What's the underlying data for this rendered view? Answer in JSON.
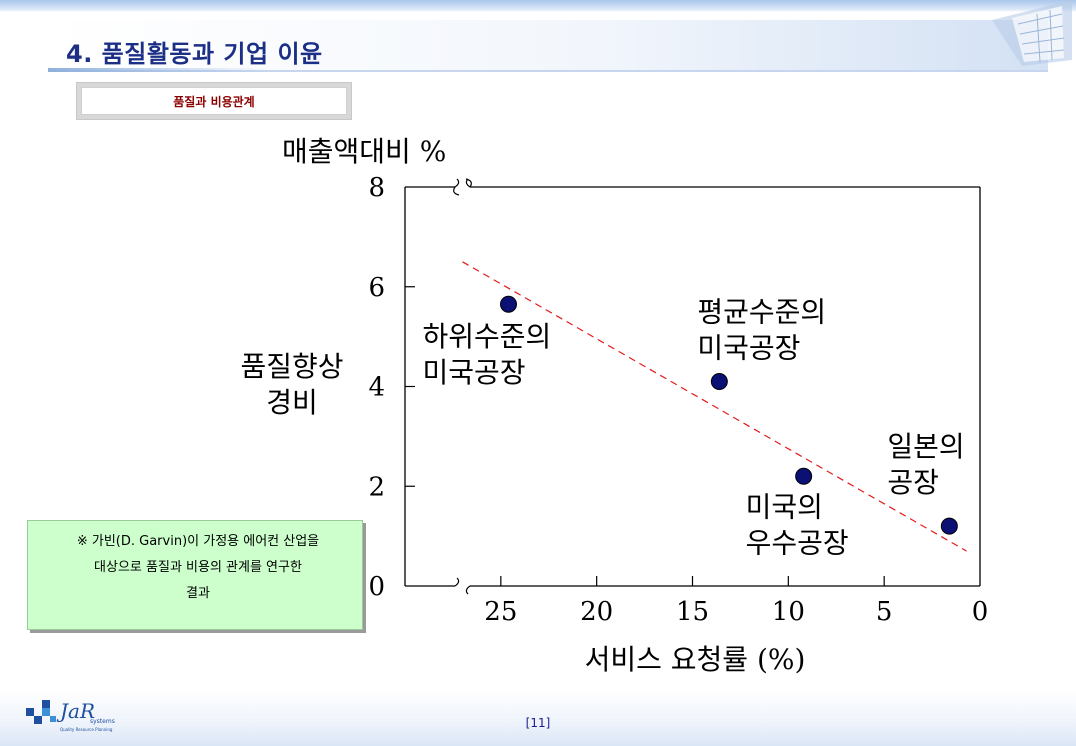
{
  "header": {
    "title": "4. 품질활동과 기업 이윤"
  },
  "subtitle": "품질과 비용관계",
  "note": {
    "lines": [
      "※ 가빈(D. Garvin)이 가정용 에어컨 산업을",
      "대상으로 품질과 비용의 관계를 연구한",
      "결과"
    ]
  },
  "footer": {
    "page_number": "[11]",
    "logo_text": "JaR",
    "logo_sub": "systems",
    "logo_tagline": "Quality Resource Planning"
  },
  "chart_data": {
    "type": "scatter",
    "title": "",
    "y_axis_top_label": "매출액대비 %",
    "ylabel_lines": [
      "품질향상",
      "경비"
    ],
    "xlabel": "서비스 요청률 (%)",
    "x_reversed": true,
    "xlim": [
      30,
      0
    ],
    "ylim": [
      0,
      8
    ],
    "x_ticks": [
      25,
      20,
      15,
      10,
      5,
      0
    ],
    "y_ticks": [
      0,
      2,
      4,
      6,
      8
    ],
    "points": [
      {
        "x": 24.6,
        "y": 5.65,
        "label_lines": [
          "하위수준의",
          "미국공장"
        ]
      },
      {
        "x": 13.6,
        "y": 4.1,
        "label_lines": [
          "평균수준의",
          "미국공장"
        ]
      },
      {
        "x": 9.2,
        "y": 2.2,
        "label_lines": [
          "미국의",
          "우수공장"
        ]
      },
      {
        "x": 1.6,
        "y": 1.2,
        "label_lines": [
          "일본의",
          "공장"
        ]
      }
    ],
    "trend_line": {
      "from": {
        "x": 27.0,
        "y": 6.5
      },
      "to": {
        "x": 0.7,
        "y": 0.7
      }
    },
    "colors": {
      "point": "#0b1075",
      "trend": "#e21b1b",
      "axis": "#000000"
    }
  }
}
